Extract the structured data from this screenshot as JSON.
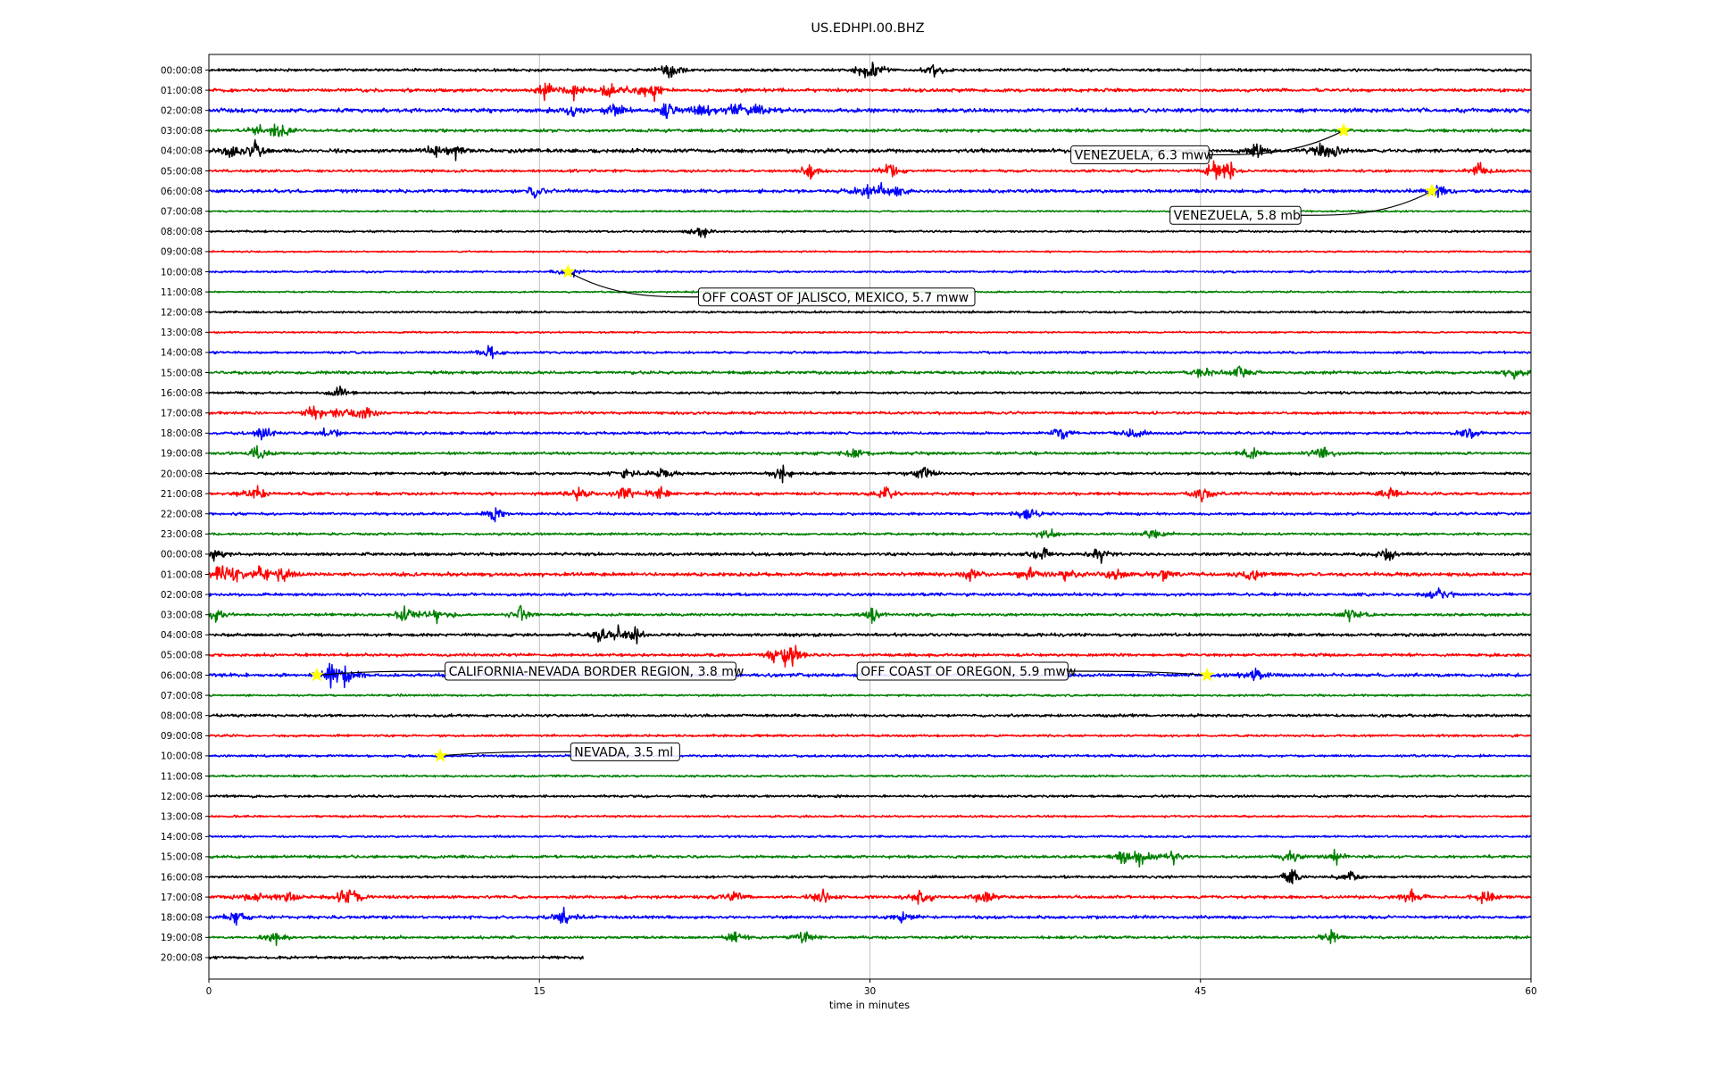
{
  "chart_data": {
    "type": "line",
    "title": "US.EDHPI.00.BHZ",
    "xlabel": "time in minutes",
    "ylabel": "",
    "xlim": [
      0,
      60
    ],
    "x_ticks": [
      "0",
      "15",
      "30",
      "45",
      "60"
    ],
    "grid": "vertical",
    "colors": [
      "#000000",
      "#ff0000",
      "#0000ff",
      "#008000"
    ],
    "marker_color": "#ffff00",
    "rows": [
      {
        "label": "00:00:08",
        "color": "#000000",
        "duration": 60,
        "activity": [
          21,
          29.8,
          30.3,
          32.8
        ],
        "level": 0.8
      },
      {
        "label": "01:00:08",
        "color": "#ff0000",
        "duration": 60,
        "activity": [
          15.3,
          16.5,
          18.2,
          19.5,
          20.2
        ],
        "level": 1.0
      },
      {
        "label": "02:00:08",
        "color": "#0000ff",
        "duration": 60,
        "activity": [
          16.5,
          18.5,
          20.7,
          22.3,
          23.8,
          24.8
        ],
        "level": 1.2
      },
      {
        "label": "03:00:08",
        "color": "#008000",
        "duration": 60,
        "activity": [
          2.2,
          3.2
        ],
        "level": 0.9
      },
      {
        "label": "04:00:08",
        "color": "#000000",
        "duration": 60,
        "activity": [
          0.9,
          2.1,
          10.3,
          11.2,
          47.5,
          50.4,
          51.1
        ],
        "level": 1.1
      },
      {
        "label": "05:00:08",
        "color": "#ff0000",
        "duration": 60,
        "activity": [
          27.3,
          30.9,
          45.6,
          46.3,
          57.7
        ],
        "level": 0.8
      },
      {
        "label": "06:00:08",
        "color": "#0000ff",
        "duration": 60,
        "activity": [
          14.8,
          29.7,
          30.5,
          31.2,
          55.8
        ],
        "level": 1.0
      },
      {
        "label": "07:00:08",
        "color": "#008000",
        "duration": 60,
        "activity": [],
        "level": 0.5
      },
      {
        "label": "08:00:08",
        "color": "#000000",
        "duration": 60,
        "activity": [
          22.3
        ],
        "level": 0.6
      },
      {
        "label": "09:00:08",
        "color": "#ff0000",
        "duration": 60,
        "activity": [],
        "level": 0.5
      },
      {
        "label": "10:00:08",
        "color": "#0000ff",
        "duration": 60,
        "activity": [
          16.3
        ],
        "level": 0.6
      },
      {
        "label": "11:00:08",
        "color": "#008000",
        "duration": 60,
        "activity": [],
        "level": 0.5
      },
      {
        "label": "12:00:08",
        "color": "#000000",
        "duration": 60,
        "activity": [],
        "level": 0.6
      },
      {
        "label": "13:00:08",
        "color": "#ff0000",
        "duration": 60,
        "activity": [],
        "level": 0.5
      },
      {
        "label": "14:00:08",
        "color": "#0000ff",
        "duration": 60,
        "activity": [
          12.8
        ],
        "level": 0.7
      },
      {
        "label": "15:00:08",
        "color": "#008000",
        "duration": 60,
        "activity": [
          45.1,
          46.8,
          59.3
        ],
        "level": 0.9
      },
      {
        "label": "16:00:08",
        "color": "#000000",
        "duration": 60,
        "activity": [
          5.9
        ],
        "level": 0.7
      },
      {
        "label": "17:00:08",
        "color": "#ff0000",
        "duration": 60,
        "activity": [
          4.7,
          5.9,
          7.1
        ],
        "level": 0.8
      },
      {
        "label": "18:00:08",
        "color": "#0000ff",
        "duration": 60,
        "activity": [
          2.4,
          5.4,
          38.8,
          42,
          57.1
        ],
        "level": 0.8
      },
      {
        "label": "19:00:08",
        "color": "#008000",
        "duration": 60,
        "activity": [
          2.3,
          29.3,
          47.3,
          50.5
        ],
        "level": 0.8
      },
      {
        "label": "20:00:08",
        "color": "#000000",
        "duration": 60,
        "activity": [
          18.9,
          20.6,
          26,
          32.4
        ],
        "level": 0.8
      },
      {
        "label": "21:00:08",
        "color": "#ff0000",
        "duration": 60,
        "activity": [
          2.1,
          16.8,
          18.8,
          20.4,
          30.7,
          45.1,
          53.6
        ],
        "level": 0.9
      },
      {
        "label": "22:00:08",
        "color": "#0000ff",
        "duration": 60,
        "activity": [
          13,
          37.2
        ],
        "level": 0.8
      },
      {
        "label": "23:00:08",
        "color": "#008000",
        "duration": 60,
        "activity": [
          38,
          43
        ],
        "level": 0.7
      },
      {
        "label": "00:00:08",
        "color": "#000000",
        "duration": 60,
        "activity": [
          0.2,
          37.9,
          40.5,
          53.5
        ],
        "level": 0.9
      },
      {
        "label": "01:00:08",
        "color": "#ff0000",
        "duration": 60,
        "activity": [
          0.5,
          1.1,
          2.3,
          3.3,
          34.5,
          37.2,
          38.9,
          41.2,
          43.3,
          47.4
        ],
        "level": 1.1
      },
      {
        "label": "02:00:08",
        "color": "#0000ff",
        "duration": 60,
        "activity": [
          55.9
        ],
        "level": 0.9
      },
      {
        "label": "03:00:08",
        "color": "#008000",
        "duration": 60,
        "activity": [
          0.3,
          8.9,
          10.3,
          14.1,
          30.1,
          51.8
        ],
        "level": 0.8
      },
      {
        "label": "04:00:08",
        "color": "#000000",
        "duration": 60,
        "activity": [
          17.8,
          18.6,
          19.4
        ],
        "level": 0.9
      },
      {
        "label": "05:00:08",
        "color": "#ff0000",
        "duration": 60,
        "activity": [
          25.7,
          26.3,
          26.6
        ],
        "level": 0.9
      },
      {
        "label": "06:00:08",
        "color": "#0000ff",
        "duration": 60,
        "activity": [
          5.5,
          5.9,
          6.4,
          47.5
        ],
        "level": 1.0
      },
      {
        "label": "07:00:08",
        "color": "#008000",
        "duration": 60,
        "activity": [],
        "level": 0.6
      },
      {
        "label": "08:00:08",
        "color": "#000000",
        "duration": 60,
        "activity": [],
        "level": 0.8
      },
      {
        "label": "09:00:08",
        "color": "#ff0000",
        "duration": 60,
        "activity": [],
        "level": 0.7
      },
      {
        "label": "10:00:08",
        "color": "#0000ff",
        "duration": 60,
        "activity": [],
        "level": 0.7
      },
      {
        "label": "11:00:08",
        "color": "#008000",
        "duration": 60,
        "activity": [],
        "level": 0.6
      },
      {
        "label": "12:00:08",
        "color": "#000000",
        "duration": 60,
        "activity": [],
        "level": 0.7
      },
      {
        "label": "13:00:08",
        "color": "#ff0000",
        "duration": 60,
        "activity": [],
        "level": 0.6
      },
      {
        "label": "14:00:08",
        "color": "#0000ff",
        "duration": 60,
        "activity": [],
        "level": 0.6
      },
      {
        "label": "15:00:08",
        "color": "#008000",
        "duration": 60,
        "activity": [
          41.5,
          42.3,
          43.8,
          49.1,
          51.1
        ],
        "level": 0.8
      },
      {
        "label": "16:00:08",
        "color": "#000000",
        "duration": 60,
        "activity": [
          49.1,
          51.7
        ],
        "level": 0.7
      },
      {
        "label": "17:00:08",
        "color": "#ff0000",
        "duration": 60,
        "activity": [
          2,
          3.6,
          6,
          6.6,
          23.8,
          27.8,
          32.3,
          35.2,
          54.6,
          57.8
        ],
        "level": 0.9
      },
      {
        "label": "18:00:08",
        "color": "#0000ff",
        "duration": 60,
        "activity": [
          1.2,
          16.1,
          31.5
        ],
        "level": 0.9
      },
      {
        "label": "19:00:08",
        "color": "#008000",
        "duration": 60,
        "activity": [
          3,
          23.8,
          27,
          50.9
        ],
        "level": 0.8
      },
      {
        "label": "20:00:08",
        "color": "#000000",
        "duration": 17,
        "activity": [],
        "level": 0.8
      }
    ],
    "events": [
      {
        "label": "VENEZUELA, 6.3 mww",
        "row": 3,
        "minute": 51.5,
        "text_minute": 39.2,
        "text_row": 4.2
      },
      {
        "label": "VENEZUELA, 5.8 mb",
        "row": 6,
        "minute": 55.5,
        "text_minute": 43.7,
        "text_row": 7.2
      },
      {
        "label": "OFF COAST OF JALISCO, MEXICO, 5.7 mww",
        "row": 10,
        "minute": 16.3,
        "text_minute": 22.3,
        "text_row": 11.25
      },
      {
        "label": "CALIFORNIA-NEVADA BORDER REGION, 3.8 mw",
        "row": 30,
        "minute": 4.9,
        "text_minute": 10.8,
        "text_row": 29.8
      },
      {
        "label": "OFF COAST OF OREGON, 5.9 mww",
        "row": 30,
        "minute": 45.3,
        "text_minute": 29.5,
        "text_row": 29.8
      },
      {
        "label": "NEVADA, 3.5 ml",
        "row": 34,
        "minute": 10.5,
        "text_minute": 16.5,
        "text_row": 33.8
      }
    ]
  }
}
